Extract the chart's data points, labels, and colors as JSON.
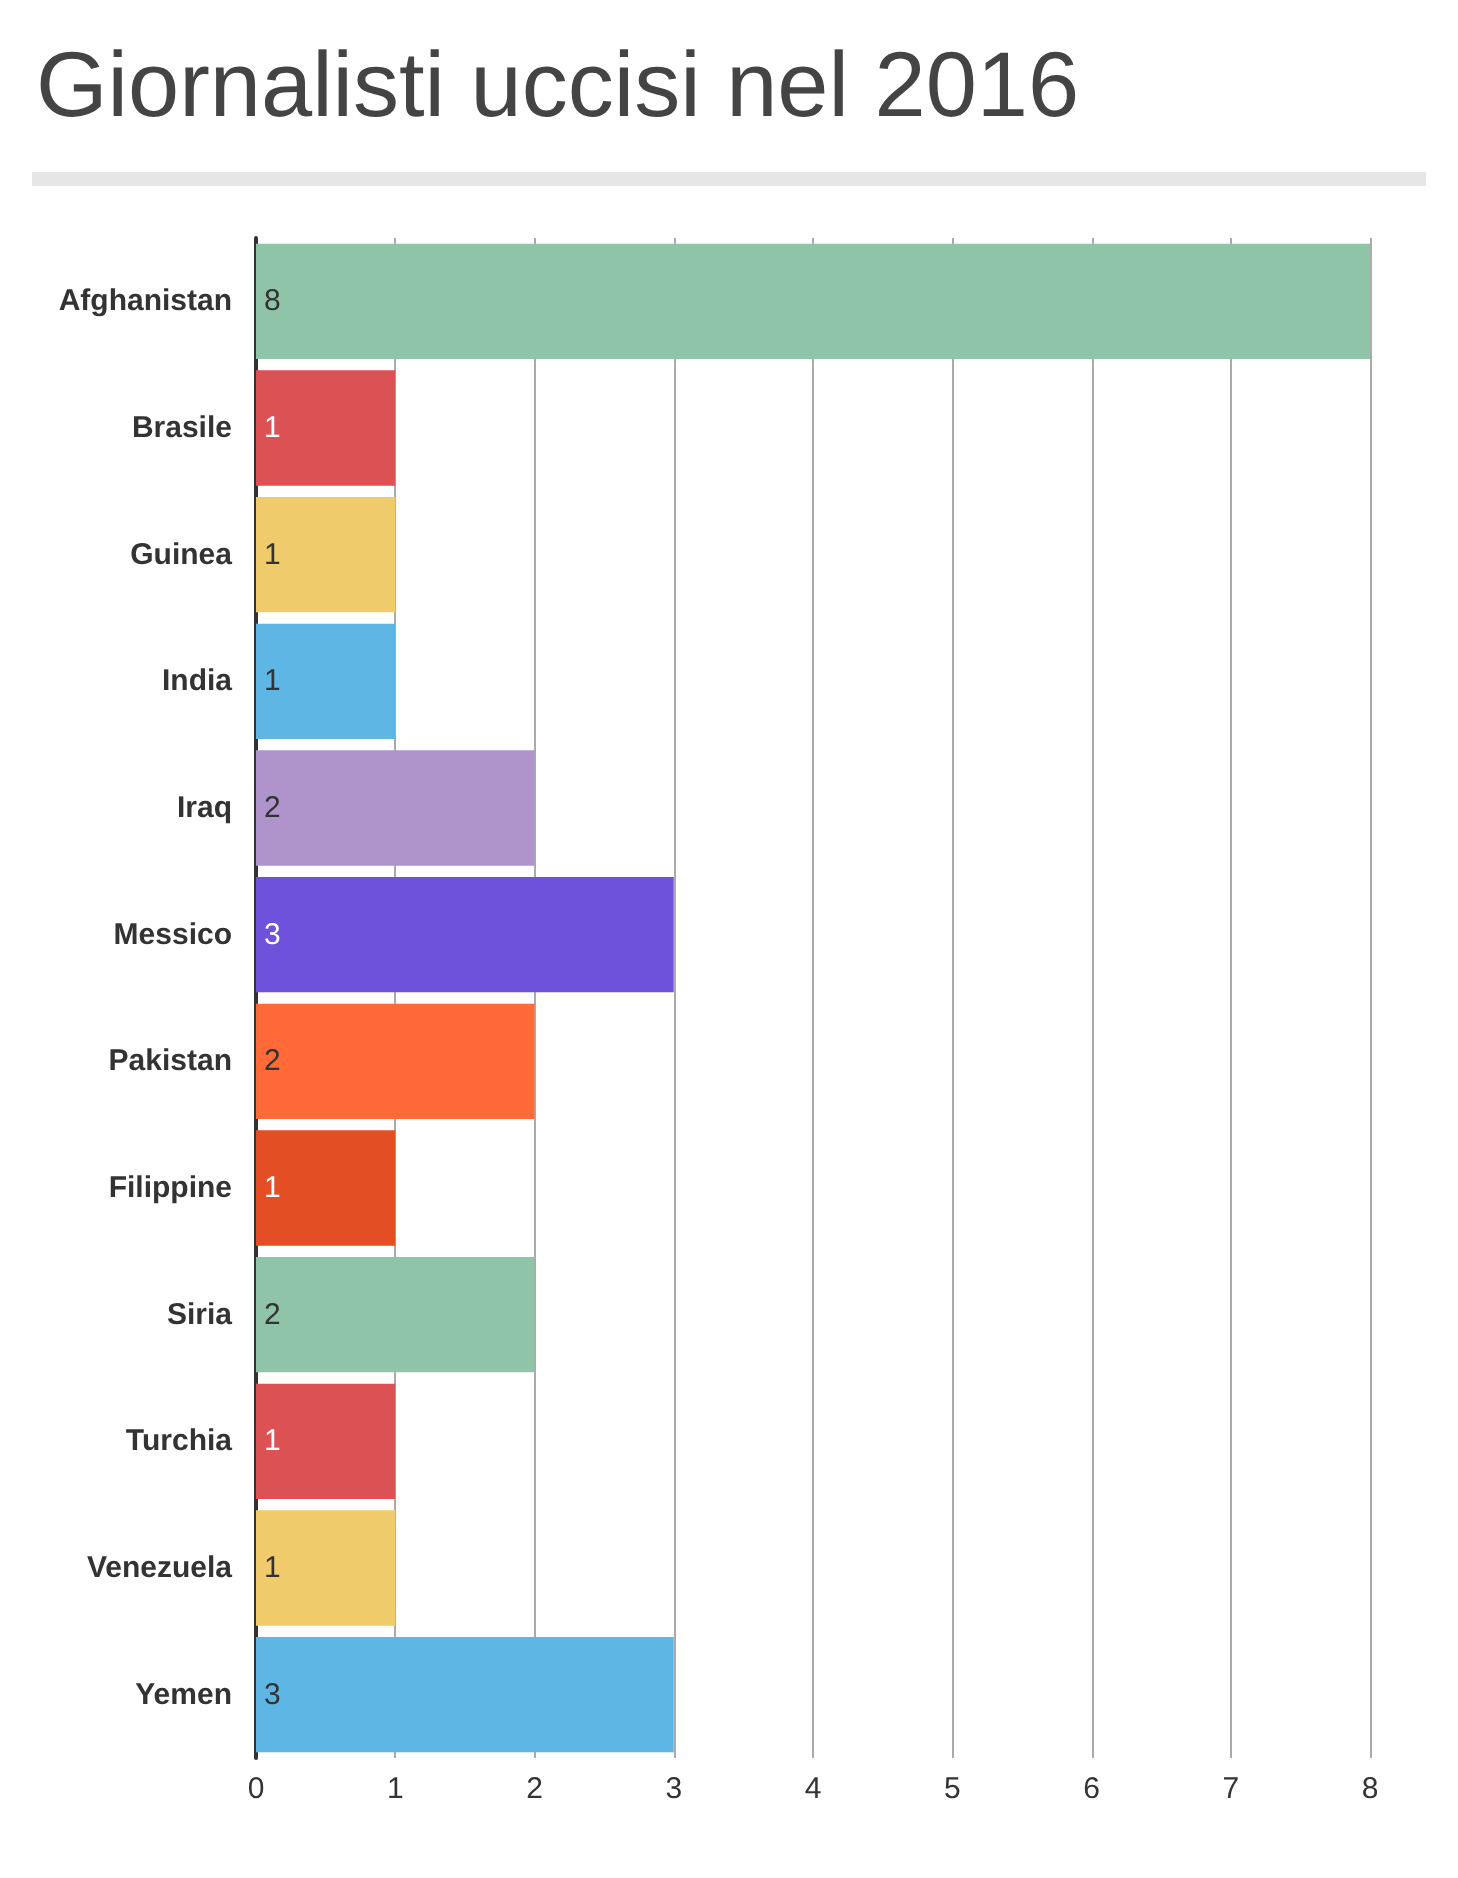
{
  "chart_data": {
    "type": "bar",
    "orientation": "horizontal",
    "title": "Giornalisti uccisi nel 2016",
    "categories": [
      "Afghanistan",
      "Brasile",
      "Guinea",
      "India",
      "Iraq",
      "Messico",
      "Pakistan",
      "Filippine",
      "Siria",
      "Turchia",
      "Venezuela",
      "Yemen"
    ],
    "values": [
      8,
      1,
      1,
      1,
      2,
      3,
      2,
      1,
      2,
      1,
      1,
      3
    ],
    "colors": [
      "#8fc4a8",
      "#dc5154",
      "#efcb6b",
      "#5db6e4",
      "#ae94cb",
      "#6e52dc",
      "#ff6a38",
      "#e34e24",
      "#8fc4a8",
      "#dc5154",
      "#efcb6b",
      "#5db6e4"
    ],
    "xlim": [
      0,
      8
    ],
    "xticks": [
      0,
      1,
      2,
      3,
      4,
      5,
      6,
      7,
      8
    ],
    "grid": "x",
    "data_labels": true
  }
}
